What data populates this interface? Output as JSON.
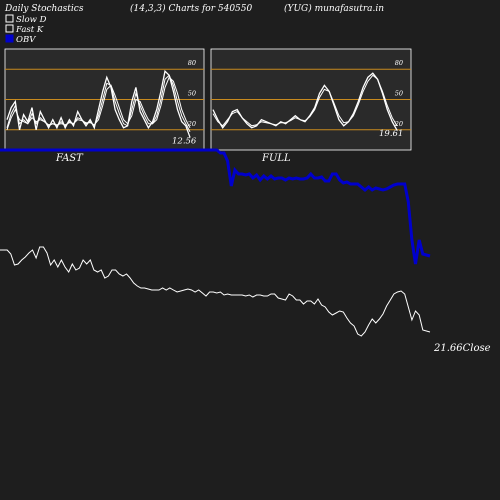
{
  "header": {
    "left": "Daily Stochastics",
    "params": "(14,3,3) Charts for 540550",
    "source": "(YUG) munafasutra.in"
  },
  "legend": {
    "items": [
      {
        "label": "Slow  D",
        "color": "#ffffff"
      },
      {
        "label": "Fast K",
        "color": "#ffffff"
      },
      {
        "label": "OBV",
        "color": "#0000cc"
      }
    ]
  },
  "colors": {
    "background": "#1e1e1e",
    "panel": "#2a2a2a",
    "level_line": "#c88a1e",
    "obv": "#0000cc",
    "line": "#ffffff"
  },
  "chart_data": [
    {
      "type": "line",
      "name": "stochastic-fast-panel",
      "label": "FAST",
      "ylim": [
        0,
        100
      ],
      "levels": [
        20,
        50,
        80
      ],
      "tick_labels": [
        "80",
        "50",
        "20"
      ],
      "last_value_label": "12.56",
      "series": [
        {
          "values": [
            30,
            42,
            48,
            20,
            35,
            28,
            42,
            20,
            38,
            30,
            22,
            30,
            22,
            32,
            22,
            30,
            24,
            38,
            30,
            24,
            30,
            22,
            40,
            58,
            72,
            62,
            40,
            30,
            22,
            24,
            48,
            62,
            38,
            30,
            22,
            28,
            40,
            58,
            78,
            74,
            58,
            40,
            28,
            24,
            12.56
          ]
        },
        {
          "values": [
            22,
            36,
            44,
            26,
            30,
            26,
            36,
            26,
            32,
            28,
            24,
            26,
            24,
            28,
            24,
            28,
            26,
            32,
            30,
            26,
            28,
            24,
            34,
            50,
            66,
            64,
            48,
            36,
            26,
            24,
            40,
            56,
            44,
            34,
            26,
            26,
            34,
            50,
            70,
            74,
            64,
            48,
            34,
            26,
            18
          ]
        },
        {
          "values": [
            20,
            32,
            40,
            30,
            28,
            26,
            32,
            28,
            30,
            28,
            25,
            26,
            25,
            26,
            25,
            27,
            26,
            30,
            29,
            27,
            27,
            25,
            30,
            44,
            60,
            64,
            54,
            42,
            30,
            26,
            34,
            50,
            48,
            38,
            30,
            26,
            30,
            44,
            62,
            72,
            68,
            56,
            40,
            30,
            22
          ]
        }
      ]
    },
    {
      "type": "line",
      "name": "stochastic-full-panel",
      "label": "FULL",
      "ylim": [
        0,
        100
      ],
      "levels": [
        20,
        50,
        80
      ],
      "tick_labels": [
        "80",
        "50",
        "20"
      ],
      "last_value_label": "19.61",
      "series": [
        {
          "values": [
            40,
            30,
            22,
            28,
            38,
            40,
            32,
            26,
            22,
            24,
            30,
            28,
            26,
            24,
            28,
            26,
            30,
            34,
            30,
            28,
            34,
            42,
            56,
            64,
            58,
            44,
            30,
            24,
            28,
            36,
            48,
            62,
            72,
            76,
            70,
            56,
            40,
            28,
            19.61
          ]
        },
        {
          "values": [
            36,
            28,
            24,
            30,
            36,
            38,
            32,
            28,
            24,
            25,
            28,
            27,
            26,
            25,
            27,
            27,
            29,
            32,
            30,
            29,
            33,
            40,
            52,
            60,
            58,
            46,
            34,
            27,
            28,
            34,
            45,
            58,
            68,
            74,
            70,
            58,
            44,
            32,
            24
          ]
        }
      ]
    },
    {
      "type": "line",
      "name": "price-and-obv",
      "last_price_label": "21.66",
      "close_label": "Close",
      "series": [
        {
          "name": "OBV",
          "values": [
            100,
            100,
            100,
            100,
            100,
            100,
            100,
            100,
            100,
            100,
            100,
            100,
            100,
            100,
            100,
            100,
            100,
            100,
            100,
            100,
            100,
            100,
            100,
            100,
            100,
            100,
            100,
            100,
            100,
            100,
            100,
            100,
            100,
            100,
            100,
            100,
            100,
            100,
            100,
            100,
            100,
            100,
            100,
            100,
            100,
            100,
            100,
            100,
            100,
            100,
            100,
            100,
            100,
            100,
            100,
            100,
            100,
            100,
            100,
            100,
            100,
            97,
            97,
            89,
            64,
            80,
            76,
            76,
            75,
            76,
            72,
            75,
            70,
            74,
            71,
            74,
            71,
            72,
            72,
            70,
            72,
            71,
            72,
            71,
            71,
            72,
            76,
            72,
            72,
            73,
            69,
            69,
            76,
            76,
            70,
            67,
            68,
            66,
            66,
            66,
            63,
            60,
            63,
            60,
            62,
            61,
            60,
            61,
            63,
            65,
            66,
            66,
            66,
            48,
            10,
            -14,
            10,
            -4,
            -5,
            -6
          ]
        },
        {
          "name": "Close",
          "values": [
            100,
            100,
            100,
            96,
            85,
            86,
            90,
            93,
            97,
            100,
            92,
            103,
            103,
            97,
            85,
            90,
            83,
            90,
            83,
            78,
            86,
            80,
            82,
            90,
            86,
            90,
            80,
            78,
            80,
            72,
            74,
            80,
            80,
            76,
            74,
            76,
            72,
            67,
            64,
            62,
            62,
            61,
            60,
            60,
            60,
            62,
            60,
            62,
            60,
            58,
            59,
            60,
            61,
            60,
            58,
            60,
            57,
            54,
            58,
            58,
            57,
            58,
            55,
            56,
            55,
            55,
            55,
            55,
            54,
            55,
            53,
            55,
            55,
            54,
            54,
            56,
            56,
            52,
            51,
            50,
            56,
            54,
            50,
            50,
            46,
            49,
            49,
            46,
            51,
            45,
            43,
            38,
            35,
            37,
            39,
            38,
            32,
            27,
            24,
            16,
            14,
            18,
            25,
            31,
            27,
            31,
            36,
            44,
            50,
            56,
            58,
            59,
            56,
            43,
            30,
            39,
            35,
            20,
            19,
            18
          ]
        }
      ]
    }
  ],
  "panel_labels": {
    "fast": "FAST",
    "full": "FULL"
  }
}
